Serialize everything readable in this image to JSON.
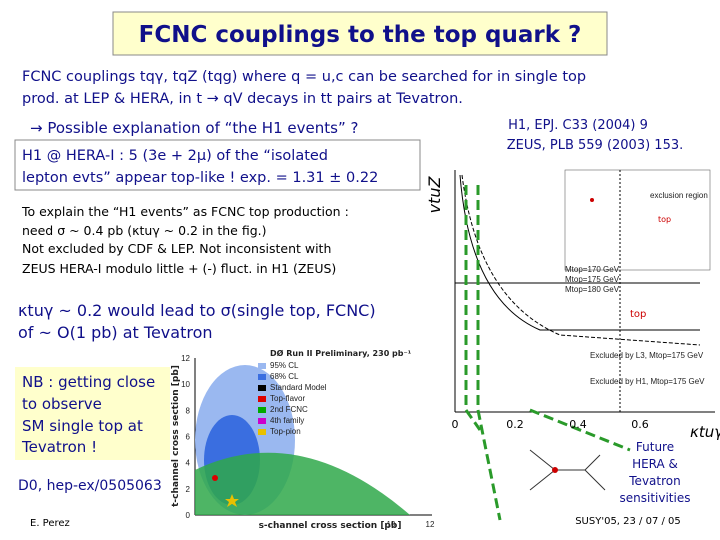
{
  "title": "FCNC couplings to the top quark ?",
  "intro": [
    "FCNC couplings tqγ, tqZ  (tqg)  where q = u,c can be searched for in single top",
    "prod. at LEP & HERA, in t → qV decays in tt pairs at Tevatron."
  ],
  "h1_point": "→ Possible explanation of “the H1 events” ?",
  "h1_box": [
    "H1 @ HERA-I : 5 (3e + 2μ) of the “isolated",
    "lepton evts” appear top-like !  exp. = 1.31 ± 0.22"
  ],
  "refs": [
    "H1, EPJ. C33 (2004) 9",
    "ZEUS, PLB 559 (2003) 153."
  ],
  "explain": [
    "To explain the “H1 events” as FCNC top production :",
    "need σ ~ 0.4 pb  (κtuγ ~ 0.2 in the fig.)",
    "Not excluded by CDF & LEP. Not inconsistent with",
    "ZEUS HERA-I  modulo little + (-) fluct. in H1 (ZEUS)"
  ],
  "kappa": [
    "κtuγ ~ 0.2 would lead to σ(single top, FCNC)",
    "of ~ O(1 pb) at Tevatron"
  ],
  "nb_box": [
    "NB : getting close",
    "to observe",
    "SM single top at",
    "Tevatron !"
  ],
  "d0_ref": "D0, hep-ex/0505063",
  "future": [
    "Future",
    "HERA &",
    "Tevatron",
    "sensitivities"
  ],
  "footer_left": "E. Perez",
  "footer_right": "SUSY'05, 23 / 07 / 05",
  "d0_plot": {
    "title": "DØ Run II Preliminary, 230 pb⁻¹",
    "legend": [
      "95% CL",
      "68% CL",
      "Standard Model",
      "Top-flavor",
      "2nd FCNC",
      "4th family",
      "Top-pion"
    ],
    "x_label": "s-channel cross section [pb]",
    "y_label": "t-channel cross section [pb]",
    "yticks": [
      "0",
      "2",
      "4",
      "6",
      "8",
      "10",
      "12"
    ],
    "xticks": [
      "10",
      "12"
    ]
  },
  "kappa_plot": {
    "y_label": "vtuZ",
    "x_label": "κtuγ",
    "region": "exclusion region",
    "masses": [
      "Mtop=170 GeV",
      "Mtop=175 GeV",
      "Mtop=180 GeV"
    ],
    "excluded": [
      "Excluded by L3, Mtop=175 GeV",
      "Excluded by H1, Mtop=175 GeV"
    ],
    "top": "top",
    "xticks": [
      "0",
      "0.2",
      "0.4",
      "0.6"
    ]
  }
}
